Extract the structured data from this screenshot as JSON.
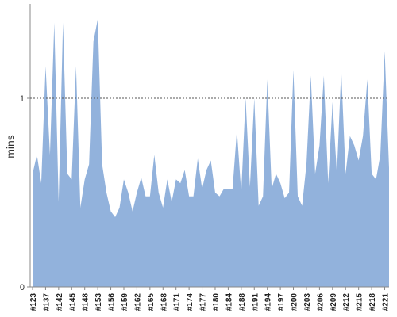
{
  "chart_data": {
    "type": "area",
    "y_label": "mins",
    "color": "#92b2dc",
    "categories": [
      "#123",
      null,
      null,
      "#137",
      null,
      null,
      "#142",
      null,
      null,
      "#145",
      null,
      null,
      "#148",
      null,
      null,
      "#153",
      null,
      null,
      "#156",
      null,
      null,
      "#159",
      null,
      null,
      "#162",
      null,
      null,
      "#165",
      null,
      null,
      "#168",
      null,
      null,
      "#171",
      null,
      null,
      "#174",
      null,
      null,
      "#177",
      null,
      null,
      "#180",
      null,
      null,
      "#184",
      null,
      null,
      "#188",
      null,
      null,
      "#191",
      null,
      null,
      "#194",
      null,
      null,
      "#197",
      null,
      null,
      "#200",
      null,
      null,
      "#203",
      null,
      null,
      "#206",
      null,
      null,
      "#209",
      null,
      null,
      "#212",
      null,
      null,
      "#215",
      null,
      null,
      "#218",
      null,
      null,
      "#221",
      null
    ],
    "values": [
      0.6,
      0.7,
      0.55,
      1.17,
      0.7,
      1.4,
      0.45,
      1.4,
      0.6,
      0.57,
      1.17,
      0.42,
      0.57,
      0.65,
      1.3,
      1.42,
      0.65,
      0.5,
      0.4,
      0.37,
      0.42,
      0.57,
      0.5,
      0.4,
      0.5,
      0.58,
      0.48,
      0.48,
      0.7,
      0.5,
      0.42,
      0.57,
      0.45,
      0.57,
      0.55,
      0.62,
      0.48,
      0.48,
      0.68,
      0.52,
      0.62,
      0.67,
      0.5,
      0.48,
      0.52,
      0.52,
      0.52,
      0.83,
      0.5,
      1.0,
      0.53,
      1.0,
      0.43,
      0.48,
      1.1,
      0.52,
      0.6,
      0.55,
      0.47,
      0.5,
      1.15,
      0.48,
      0.43,
      0.65,
      1.12,
      0.6,
      0.75,
      1.12,
      0.55,
      0.98,
      0.6,
      1.15,
      0.6,
      0.8,
      0.75,
      0.67,
      0.8,
      1.1,
      0.6,
      0.57,
      0.7,
      1.25,
      0.63
    ],
    "ylim": [
      0,
      1.5
    ],
    "yticks": [
      0,
      1
    ],
    "grid": true
  }
}
